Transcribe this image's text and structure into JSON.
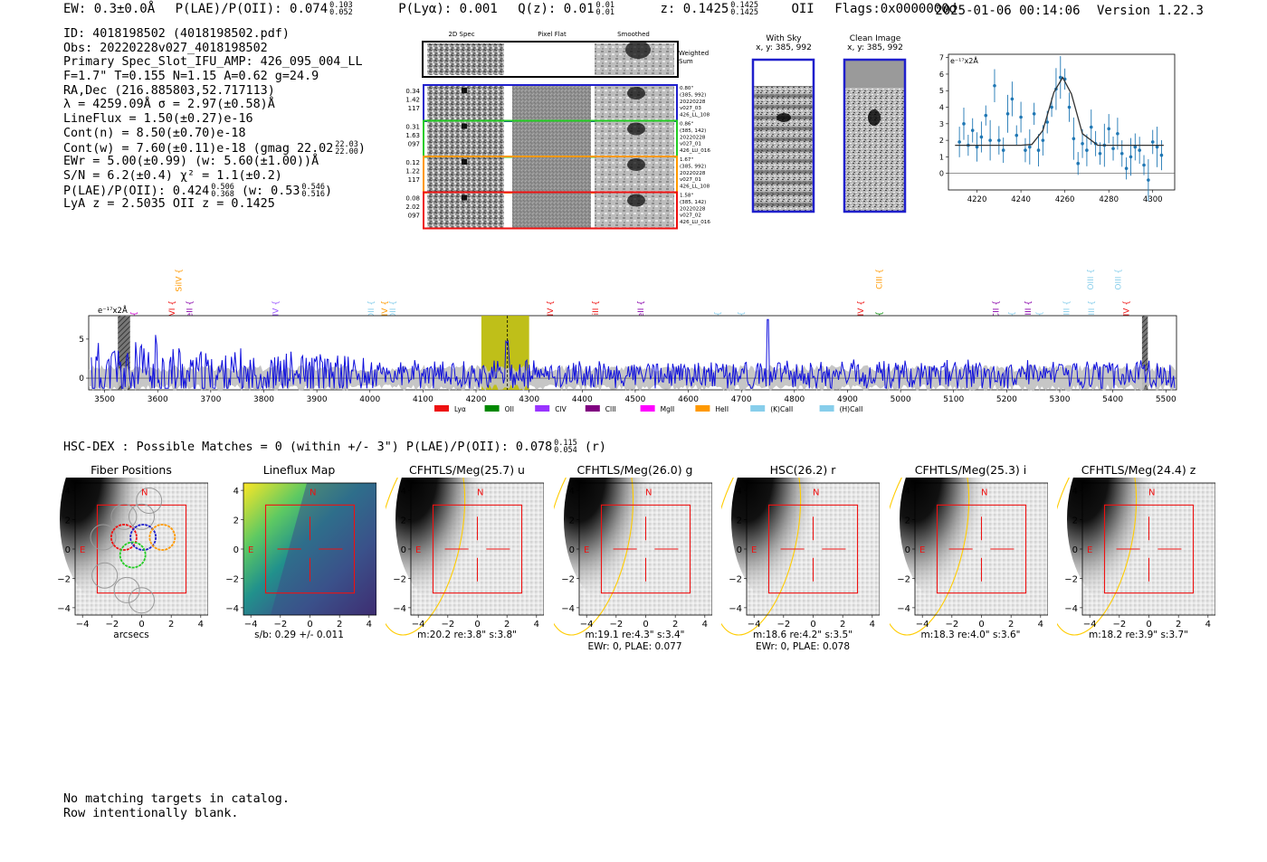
{
  "header": {
    "ew": "EW: 0.3±0.0Å",
    "plae_label": "P(LAE)/P(OII): 0.074",
    "plae_hi": "0.103",
    "plae_lo": "0.052",
    "plya": "P(Lyα): 0.001",
    "qz_label": "Q(z): 0.01",
    "qz_hi": "0.01",
    "qz_lo": "0.01",
    "z_label": "z: 0.1425",
    "z_hi": "0.1425",
    "z_lo": "0.1425",
    "z_line": "OII",
    "flags": "Flags:0x0000000d",
    "timestamp": "2025-01-06 00:14:06",
    "version": "Version 1.22.3"
  },
  "info": {
    "id": "ID: 4018198502 (4018198502.pdf)",
    "obs": "Obs: 20220228v027_4018198502",
    "primary": "Primary Spec_Slot_IFU_AMP: 426_095_004_LL",
    "fwhm": "F=1.7\"  T=0.155  N=1.15  A=0.62  g=24.9",
    "radec": "RA,Dec (216.885803,52.717113)",
    "lambda": "λ = 4259.09Å   σ = 2.97(±0.58)Å",
    "lineflux": "LineFlux = 1.50(±0.27)e-16",
    "cont_n": "Cont(n) = 8.50(±0.70)e-18",
    "cont_w": "Cont(w) = 7.60(±0.11)e-18 (gmag 22.02",
    "cont_w_hi": "22.03",
    "cont_w_lo": "22.00",
    "cont_w_end": ")",
    "ewr": "EWr = 5.00(±0.99) (w: 5.60(±1.00))Å",
    "sn": "S/N = 6.2(±0.4)  χ² = 1.1(±0.2)",
    "plae": "P(LAE)/P(OII): 0.424",
    "plae_hi": "0.506",
    "plae_lo": "0.368",
    "plae_w": "(w: 0.53",
    "plae_w_hi": "0.546",
    "plae_w_lo": "0.516",
    "plae_w_end": ")",
    "lya": "LyA z = 2.5035   OII z = 0.1425"
  },
  "cutouts": {
    "col_2d": "2D Spec",
    "col_flat": "Pixel Flat",
    "col_smooth": "Smoothed",
    "weighted": "Weighted Sum",
    "rows": [
      {
        "vals": [
          "0.34",
          "1.42",
          "117"
        ],
        "info": [
          "0.80\"",
          "(385, 992)",
          "20220228",
          "v027_03",
          "426_LL_108"
        ],
        "color": "#1f1fcc"
      },
      {
        "vals": [
          "0.31",
          "1.63",
          "097"
        ],
        "info": [
          "0.86\"",
          "(385, 142)",
          "20220228",
          "v027_01",
          "426_LU_016"
        ],
        "color": "#22cc22"
      },
      {
        "vals": [
          "0.12",
          "1.22",
          "117"
        ],
        "info": [
          "1.67\"",
          "(385, 992)",
          "20220228",
          "v027_01",
          "426_LL_108"
        ],
        "color": "#ff9900"
      },
      {
        "vals": [
          "0.08",
          "2.02",
          "097"
        ],
        "info": [
          "1.58\"",
          "(385, 142)",
          "20220228",
          "v027_02",
          "426_LU_016"
        ],
        "color": "#ee1111"
      }
    ],
    "with_sky": "With Sky",
    "with_sky_xy": "x, y: 385, 992",
    "clean": "Clean Image",
    "clean_xy": "x, y: 385, 992"
  },
  "fit_plot": {
    "unit": "e⁻¹⁷x2Å",
    "x_ticks": [
      "4220",
      "4240",
      "4260",
      "4280",
      "4300"
    ],
    "y_ticks": [
      "0",
      "1",
      "2",
      "3",
      "4",
      "5",
      "6",
      "7"
    ]
  },
  "spectrum": {
    "unit": "e⁻¹⁷x2Å",
    "y_ticks": [
      "0",
      "5"
    ],
    "x_ticks": [
      "3500",
      "3600",
      "3700",
      "3800",
      "3900",
      "4000",
      "4100",
      "4200",
      "4300",
      "4400",
      "4500",
      "4600",
      "4700",
      "4800",
      "4900",
      "5000",
      "5100",
      "5200",
      "5300",
      "5400",
      "5500"
    ],
    "line_labels": [
      {
        "t": "CII",
        "w": 3555,
        "row": 2,
        "c": "#cc00cc"
      },
      {
        "t": "SiIV",
        "w": 3640,
        "row": 0,
        "c": "#ff9900"
      },
      {
        "t": "OVI",
        "w": 3627,
        "row": 1,
        "c": "#ee1111"
      },
      {
        "t": "HeII",
        "w": 3660,
        "row": 1,
        "c": "#8800aa"
      },
      {
        "t": "SiIV",
        "w": 3822,
        "row": 1,
        "c": "#9955ff"
      },
      {
        "t": "OII",
        "w": 4002,
        "row": 1,
        "c": "#87ceeb"
      },
      {
        "t": "CIV",
        "w": 4028,
        "row": 1,
        "c": "#ff9900"
      },
      {
        "t": "OII",
        "w": 4043,
        "row": 1,
        "c": "#87ceeb"
      },
      {
        "t": "NV",
        "w": 4340,
        "row": 1,
        "c": "#ee1111"
      },
      {
        "t": "SiII",
        "w": 4425,
        "row": 1,
        "c": "#ee1111"
      },
      {
        "t": "HeII",
        "w": 4510,
        "row": 1,
        "c": "#8800aa"
      },
      {
        "t": "Hγ",
        "w": 4655,
        "row": 2,
        "c": "#87ceeb"
      },
      {
        "t": "Hγ",
        "w": 4700,
        "row": 2,
        "c": "#87ceeb"
      },
      {
        "t": "SiIV",
        "w": 4925,
        "row": 1,
        "c": "#ee1111"
      },
      {
        "t": "CIII",
        "w": 4960,
        "row": 0,
        "c": "#ff9900"
      },
      {
        "t": "Hγ",
        "w": 4960,
        "row": 2,
        "c": "#008800"
      },
      {
        "t": "CII",
        "w": 5180,
        "row": 1,
        "c": "#8800aa"
      },
      {
        "t": "Hβ",
        "w": 5210,
        "row": 2,
        "c": "#87ceeb"
      },
      {
        "t": "CIII",
        "w": 5240,
        "row": 1,
        "c": "#8800aa"
      },
      {
        "t": "Hβ",
        "w": 5262,
        "row": 2,
        "c": "#87ceeb"
      },
      {
        "t": "OIII",
        "w": 5313,
        "row": 1,
        "c": "#87ceeb"
      },
      {
        "t": "OIII",
        "w": 5358,
        "row": 0,
        "c": "#87ceeb"
      },
      {
        "t": "OIII",
        "w": 5360,
        "row": 1,
        "c": "#87ceeb"
      },
      {
        "t": "OIII",
        "w": 5410,
        "row": 0,
        "c": "#87ceeb"
      },
      {
        "t": "CIV",
        "w": 5425,
        "row": 1,
        "c": "#ee1111"
      }
    ],
    "legend": [
      {
        "label": "Lyα",
        "color": "#ee1111"
      },
      {
        "label": "OII",
        "color": "#008800"
      },
      {
        "label": "CIV",
        "color": "#9933ff"
      },
      {
        "label": "CIII",
        "color": "#800080"
      },
      {
        "label": "MgII",
        "color": "#ff00ff"
      },
      {
        "label": "HeII",
        "color": "#ff9900"
      },
      {
        "label": "(K)CaII",
        "color": "#87ceeb"
      },
      {
        "label": "(H)CaII",
        "color": "#87ceeb"
      }
    ]
  },
  "chart_data": {
    "type": "line",
    "title": "",
    "xlabel": "",
    "ylabel": "e⁻¹⁷x2Å",
    "xlim": [
      3470,
      5520
    ],
    "ylim": [
      -1.5,
      8
    ],
    "highlight_band": [
      4210,
      4300
    ],
    "emission_line": 4259.09,
    "spike": {
      "x": 4750,
      "y": 7.5
    },
    "fit": {
      "x": [
        4210,
        4220,
        4230,
        4240,
        4245,
        4250,
        4255,
        4259,
        4263,
        4268,
        4275,
        4285,
        4295,
        4305
      ],
      "y": [
        1.7,
        1.7,
        1.7,
        1.7,
        1.75,
        2.6,
        4.9,
        5.8,
        4.8,
        2.4,
        1.7,
        1.7,
        1.7,
        1.7
      ],
      "xlim": [
        4207,
        4310
      ],
      "ylim": [
        -1,
        7.2
      ],
      "points": [
        {
          "x": 4212,
          "y": 1.9
        },
        {
          "x": 4214,
          "y": 3.0
        },
        {
          "x": 4216,
          "y": 1.7
        },
        {
          "x": 4218,
          "y": 2.6
        },
        {
          "x": 4220,
          "y": 1.6
        },
        {
          "x": 4222,
          "y": 2.2
        },
        {
          "x": 4224,
          "y": 3.5
        },
        {
          "x": 4226,
          "y": 2.0
        },
        {
          "x": 4228,
          "y": 5.3
        },
        {
          "x": 4230,
          "y": 2.0
        },
        {
          "x": 4232,
          "y": 1.4
        },
        {
          "x": 4234,
          "y": 3.6
        },
        {
          "x": 4236,
          "y": 4.5
        },
        {
          "x": 4238,
          "y": 2.3
        },
        {
          "x": 4240,
          "y": 3.4
        },
        {
          "x": 4242,
          "y": 1.4
        },
        {
          "x": 4244,
          "y": 1.6
        },
        {
          "x": 4246,
          "y": 3.6
        },
        {
          "x": 4248,
          "y": 1.4
        },
        {
          "x": 4250,
          "y": 2.0
        },
        {
          "x": 4252,
          "y": 3.1
        },
        {
          "x": 4254,
          "y": 4.0
        },
        {
          "x": 4256,
          "y": 5.1
        },
        {
          "x": 4258,
          "y": 5.8
        },
        {
          "x": 4260,
          "y": 5.7
        },
        {
          "x": 4262,
          "y": 4.0
        },
        {
          "x": 4264,
          "y": 2.1
        },
        {
          "x": 4266,
          "y": 0.6
        },
        {
          "x": 4268,
          "y": 1.8
        },
        {
          "x": 4270,
          "y": 1.4
        },
        {
          "x": 4272,
          "y": 2.8
        },
        {
          "x": 4274,
          "y": 1.8
        },
        {
          "x": 4276,
          "y": 1.2
        },
        {
          "x": 4278,
          "y": 1.7
        },
        {
          "x": 4280,
          "y": 2.7
        },
        {
          "x": 4282,
          "y": 1.5
        },
        {
          "x": 4284,
          "y": 2.4
        },
        {
          "x": 4286,
          "y": 1.2
        },
        {
          "x": 4288,
          "y": 0.3
        },
        {
          "x": 4290,
          "y": 1.0
        },
        {
          "x": 4292,
          "y": 1.6
        },
        {
          "x": 4294,
          "y": 1.4
        },
        {
          "x": 4296,
          "y": 0.5
        },
        {
          "x": 4298,
          "y": -0.4
        },
        {
          "x": 4300,
          "y": 1.9
        },
        {
          "x": 4302,
          "y": 1.6
        },
        {
          "x": 4304,
          "y": 1.1
        }
      ]
    }
  },
  "hsc": {
    "line": "HSC-DEX : Possible Matches = 0 (within +/- 3\")  P(LAE)/P(OII): 0.078",
    "hi": "0.115",
    "lo": "0.054",
    "band": "(r)"
  },
  "thumbs": [
    {
      "title": "Fiber Positions",
      "cap1": "arcsecs",
      "cap2": "",
      "kind": "fiber"
    },
    {
      "title": "Lineflux Map",
      "cap1": "s/b: 0.29 +/- 0.011",
      "cap2": "",
      "kind": "lineflux"
    },
    {
      "title": "CFHTLS/Meg(25.7) u",
      "cap1": "m:20.2  re:3.8\"  s:3.8\"",
      "cap2": "",
      "kind": "img"
    },
    {
      "title": "CFHTLS/Meg(26.0) g",
      "cap1": "m:19.1  re:4.3\"  s:3.4\"",
      "cap2": "EWr: 0, PLAE: 0.077",
      "kind": "img"
    },
    {
      "title": "HSC(26.2) r",
      "cap1": "m:18.6  re:4.2\"  s:3.5\"",
      "cap2": "EWr: 0, PLAE: 0.078",
      "kind": "img"
    },
    {
      "title": "CFHTLS/Meg(25.3) i",
      "cap1": "m:18.3  re:4.0\"  s:3.6\"",
      "cap2": "",
      "kind": "img"
    },
    {
      "title": "CFHTLS/Meg(24.4) z",
      "cap1": "m:18.2  re:3.9\"  s:3.7\"",
      "cap2": "",
      "kind": "img"
    }
  ],
  "thumb_axes": {
    "x_ticks": [
      "−4",
      "−2",
      "0",
      "2",
      "4"
    ],
    "y_ticks": [
      "4",
      "2",
      "0",
      "−2",
      "−4"
    ],
    "north": "N",
    "east": "E"
  },
  "footer": {
    "line1": "No matching targets in catalog.",
    "line2": "Row intentionally blank."
  }
}
